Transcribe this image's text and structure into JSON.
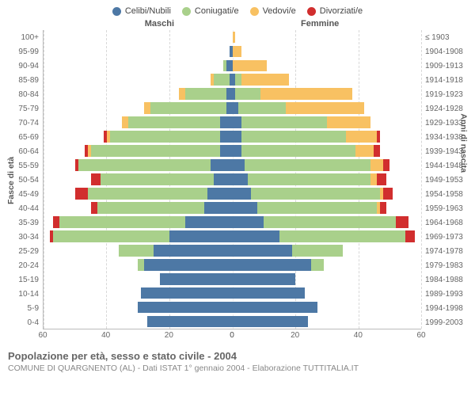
{
  "legend": {
    "items": [
      {
        "label": "Celibi/Nubili",
        "color": "#4d78a5"
      },
      {
        "label": "Coniugati/e",
        "color": "#a9d08b"
      },
      {
        "label": "Vedovi/e",
        "color": "#f8c162"
      },
      {
        "label": "Divorziati/e",
        "color": "#d12e2e"
      }
    ]
  },
  "side_titles": {
    "male": "Maschi",
    "female": "Femmine"
  },
  "axis_labels": {
    "left": "Fasce di età",
    "right": "Anni di nascita"
  },
  "footer": {
    "title": "Popolazione per età, sesso e stato civile - 2004",
    "subtitle": "COMUNE DI QUARGNENTO (AL) - Dati ISTAT 1° gennaio 2004 - Elaborazione TUTTITALIA.IT"
  },
  "chart": {
    "type": "population-pyramid",
    "xlim": 60,
    "xticks": [
      60,
      40,
      20,
      0,
      0,
      20,
      40,
      60
    ],
    "background_color": "#ffffff",
    "grid_color": "#d8d8d8",
    "colors": {
      "single": "#4d78a5",
      "married": "#a9d08b",
      "widowed": "#f8c162",
      "divorced": "#d12e2e"
    },
    "rows": [
      {
        "age": "100+",
        "birth": "≤ 1903",
        "m": [
          0,
          0,
          0,
          0
        ],
        "f": [
          0,
          0,
          1,
          0
        ]
      },
      {
        "age": "95-99",
        "birth": "1904-1908",
        "m": [
          1,
          0,
          0,
          0
        ],
        "f": [
          0,
          0,
          3,
          0
        ]
      },
      {
        "age": "90-94",
        "birth": "1909-1913",
        "m": [
          2,
          1,
          0,
          0
        ],
        "f": [
          0,
          0,
          11,
          0
        ]
      },
      {
        "age": "85-89",
        "birth": "1914-1918",
        "m": [
          1,
          5,
          1,
          0
        ],
        "f": [
          1,
          2,
          15,
          0
        ]
      },
      {
        "age": "80-84",
        "birth": "1919-1923",
        "m": [
          2,
          13,
          2,
          0
        ],
        "f": [
          1,
          8,
          29,
          0
        ]
      },
      {
        "age": "75-79",
        "birth": "1924-1928",
        "m": [
          2,
          24,
          2,
          0
        ],
        "f": [
          2,
          15,
          25,
          0
        ]
      },
      {
        "age": "70-74",
        "birth": "1929-1933",
        "m": [
          4,
          29,
          2,
          0
        ],
        "f": [
          3,
          27,
          14,
          0
        ]
      },
      {
        "age": "65-69",
        "birth": "1934-1938",
        "m": [
          4,
          35,
          1,
          1
        ],
        "f": [
          3,
          33,
          10,
          1
        ]
      },
      {
        "age": "60-64",
        "birth": "1939-1943",
        "m": [
          4,
          41,
          1,
          1
        ],
        "f": [
          3,
          36,
          6,
          2
        ]
      },
      {
        "age": "55-59",
        "birth": "1944-1948",
        "m": [
          7,
          42,
          0,
          1
        ],
        "f": [
          4,
          40,
          4,
          2
        ]
      },
      {
        "age": "50-54",
        "birth": "1949-1953",
        "m": [
          6,
          36,
          0,
          3
        ],
        "f": [
          5,
          39,
          2,
          3
        ]
      },
      {
        "age": "45-49",
        "birth": "1954-1958",
        "m": [
          8,
          38,
          0,
          4
        ],
        "f": [
          6,
          41,
          1,
          3
        ]
      },
      {
        "age": "40-44",
        "birth": "1959-1963",
        "m": [
          9,
          34,
          0,
          2
        ],
        "f": [
          8,
          38,
          1,
          2
        ]
      },
      {
        "age": "35-39",
        "birth": "1964-1968",
        "m": [
          15,
          40,
          0,
          2
        ],
        "f": [
          10,
          42,
          0,
          4
        ]
      },
      {
        "age": "30-34",
        "birth": "1969-1973",
        "m": [
          20,
          37,
          0,
          1
        ],
        "f": [
          15,
          40,
          0,
          3
        ]
      },
      {
        "age": "25-29",
        "birth": "1974-1978",
        "m": [
          25,
          11,
          0,
          0
        ],
        "f": [
          19,
          16,
          0,
          0
        ]
      },
      {
        "age": "20-24",
        "birth": "1979-1983",
        "m": [
          28,
          2,
          0,
          0
        ],
        "f": [
          25,
          4,
          0,
          0
        ]
      },
      {
        "age": "15-19",
        "birth": "1984-1988",
        "m": [
          23,
          0,
          0,
          0
        ],
        "f": [
          20,
          0,
          0,
          0
        ]
      },
      {
        "age": "10-14",
        "birth": "1989-1993",
        "m": [
          29,
          0,
          0,
          0
        ],
        "f": [
          23,
          0,
          0,
          0
        ]
      },
      {
        "age": "5-9",
        "birth": "1994-1998",
        "m": [
          30,
          0,
          0,
          0
        ],
        "f": [
          27,
          0,
          0,
          0
        ]
      },
      {
        "age": "0-4",
        "birth": "1999-2003",
        "m": [
          27,
          0,
          0,
          0
        ],
        "f": [
          24,
          0,
          0,
          0
        ]
      }
    ]
  }
}
